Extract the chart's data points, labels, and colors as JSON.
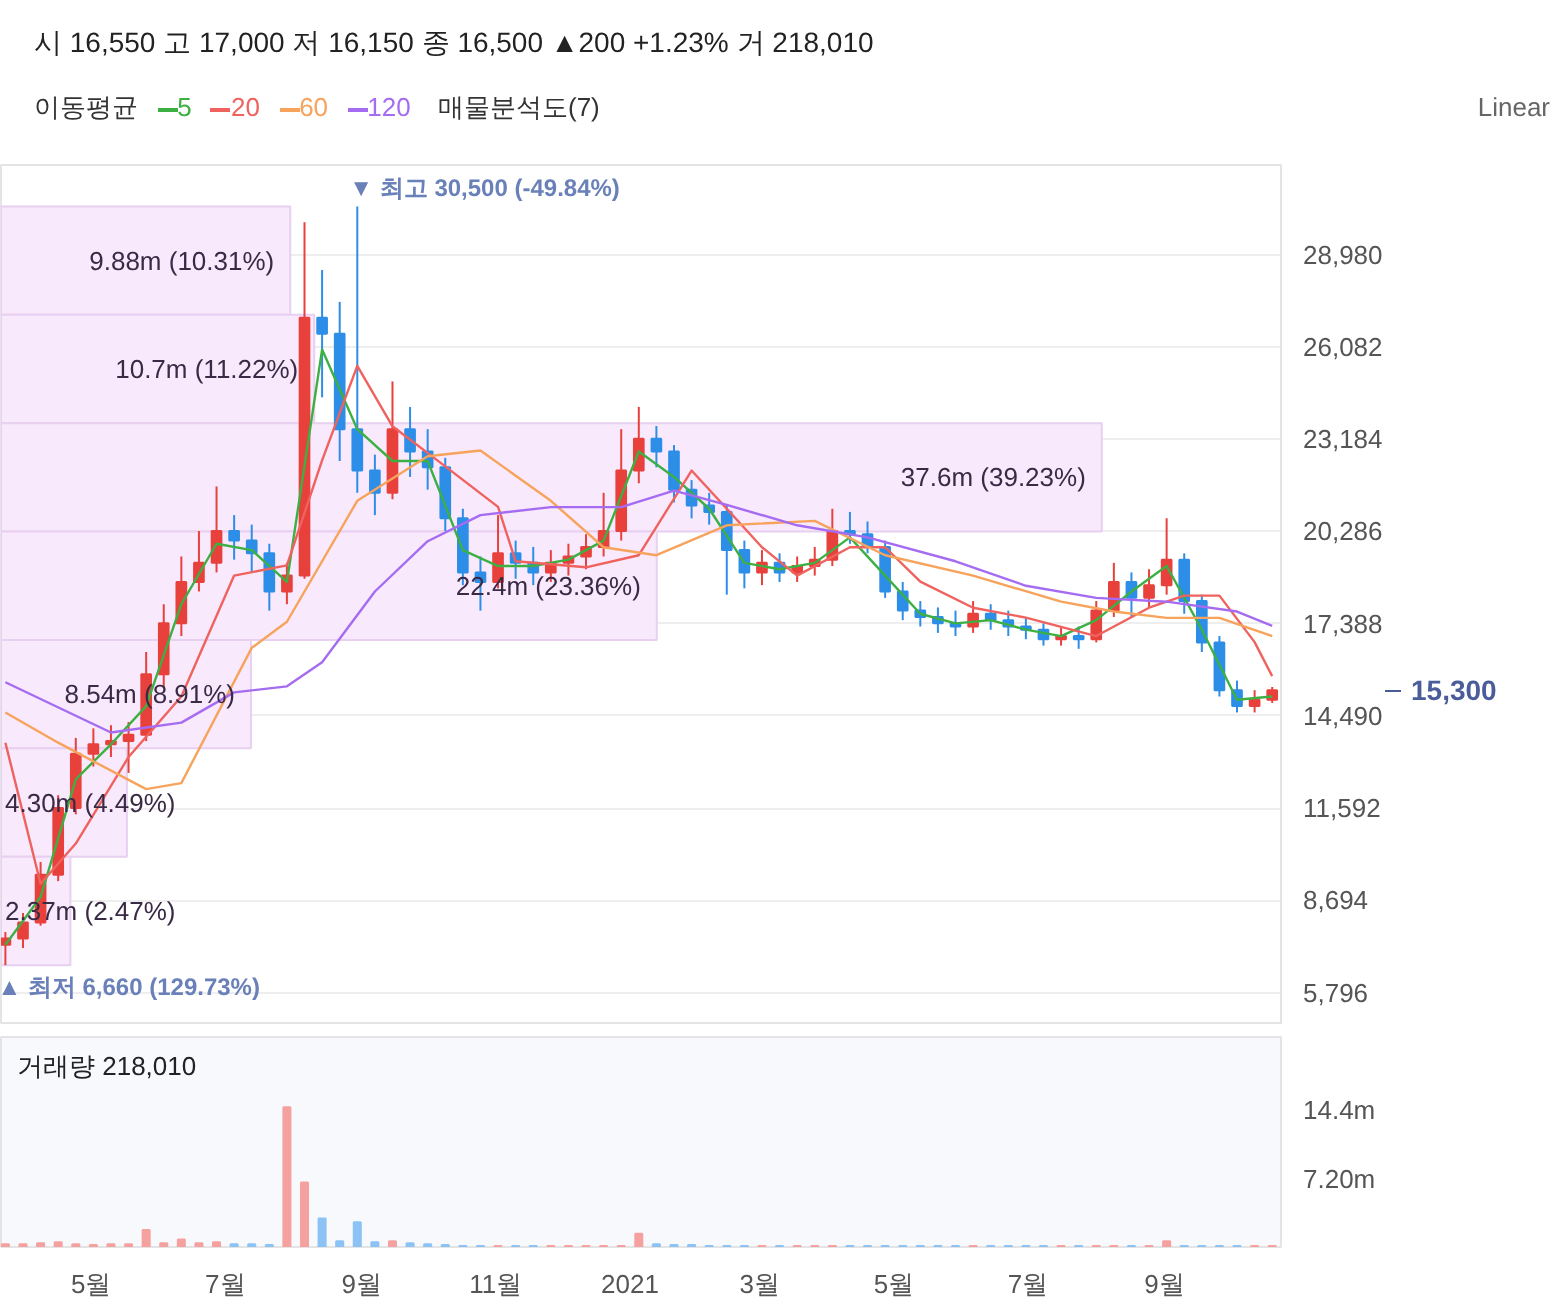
{
  "chart_data": [
    {
      "type": "candlestick",
      "subtitle": "시 16,550 고 17,000 저 16,150 종 16,500 ▲200 +1.23% 거 218,010",
      "legend_title": "이동평균",
      "legend": "top left",
      "grid": "y",
      "tick_labels": "y",
      "x": [
        "2020-03-23",
        "2020-03-31",
        "2020-04-08",
        "2020-04-16",
        "2020-04-24",
        "2020-05-02",
        "2020-05-10",
        "2020-05-18",
        "2020-05-26",
        "2020-06-03",
        "2020-06-11",
        "2020-06-19",
        "2020-06-27",
        "2020-07-05",
        "2020-07-13",
        "2020-07-21",
        "2020-07-29",
        "2020-08-06",
        "2020-08-14",
        "2020-08-22",
        "2020-08-30",
        "2020-09-07",
        "2020-09-15",
        "2020-09-23",
        "2020-10-01",
        "2020-10-09",
        "2020-10-17",
        "2020-10-25",
        "2020-11-02",
        "2020-11-10",
        "2020-11-18",
        "2020-11-26",
        "2020-12-04",
        "2020-12-12",
        "2020-12-20",
        "2020-12-28",
        "2021-01-05",
        "2021-01-13",
        "2021-01-21",
        "2021-01-29",
        "2021-02-06",
        "2021-02-14",
        "2021-02-22",
        "2021-03-02",
        "2021-03-10",
        "2021-03-18",
        "2021-03-26",
        "2021-04-03",
        "2021-04-11",
        "2021-04-19",
        "2021-04-27",
        "2021-05-05",
        "2021-05-13",
        "2021-05-21",
        "2021-05-29",
        "2021-06-06",
        "2021-06-14",
        "2021-06-22",
        "2021-06-30",
        "2021-07-08",
        "2021-07-16",
        "2021-07-24",
        "2021-08-01",
        "2021-08-09",
        "2021-08-17",
        "2021-08-25",
        "2021-09-02",
        "2021-09-10",
        "2021-09-18",
        "2021-09-26",
        "2021-10-04",
        "2021-10-12",
        "2021-10-20"
      ],
      "ohlc": [
        [
          7300,
          7700,
          6660,
          7500
        ],
        [
          7500,
          8300,
          7200,
          8000
        ],
        [
          8000,
          9900,
          7900,
          9500
        ],
        [
          9500,
          12000,
          9300,
          11600
        ],
        [
          11600,
          13800,
          11400,
          13300
        ],
        [
          13300,
          14100,
          12900,
          13600
        ],
        [
          13600,
          14200,
          13200,
          13700
        ],
        [
          13700,
          14300,
          12700,
          13900
        ],
        [
          13900,
          16500,
          13700,
          15800
        ],
        [
          15800,
          18000,
          15400,
          17400
        ],
        [
          17400,
          19500,
          17000,
          18700
        ],
        [
          18700,
          20300,
          18400,
          19300
        ],
        [
          19300,
          21700,
          19000,
          20300
        ],
        [
          20300,
          20800,
          19400,
          20000
        ],
        [
          20000,
          20500,
          19000,
          19600
        ],
        [
          19600,
          19900,
          17800,
          18400
        ],
        [
          18400,
          19300,
          18000,
          18900
        ],
        [
          18900,
          30000,
          18800,
          27000
        ],
        [
          27000,
          28500,
          24500,
          26500
        ],
        [
          26500,
          27500,
          22500,
          23500
        ],
        [
          23500,
          30500,
          21500,
          22200
        ],
        [
          22200,
          22700,
          20800,
          21500
        ],
        [
          21500,
          25000,
          21300,
          23500
        ],
        [
          23500,
          24200,
          22000,
          22800
        ],
        [
          22800,
          23500,
          21600,
          22300
        ],
        [
          22300,
          22600,
          20300,
          20700
        ],
        [
          20700,
          21000,
          18600,
          19000
        ],
        [
          19000,
          19500,
          17800,
          18700
        ],
        [
          18700,
          20800,
          18500,
          19600
        ],
        [
          19600,
          20000,
          18800,
          19300
        ],
        [
          19300,
          19800,
          18600,
          19000
        ],
        [
          19000,
          19700,
          18700,
          19300
        ],
        [
          19300,
          19900,
          18900,
          19500
        ],
        [
          19500,
          20200,
          19100,
          19800
        ],
        [
          19800,
          21500,
          19500,
          20300
        ],
        [
          20300,
          23500,
          20000,
          22200
        ],
        [
          22200,
          24200,
          21800,
          23200
        ],
        [
          23200,
          23600,
          22300,
          22800
        ],
        [
          22800,
          23000,
          21200,
          21600
        ],
        [
          21600,
          21900,
          20700,
          21100
        ],
        [
          21100,
          21500,
          20500,
          20900
        ],
        [
          20900,
          21100,
          18300,
          19700
        ],
        [
          19700,
          20000,
          18500,
          19000
        ],
        [
          19000,
          19700,
          18600,
          19300
        ],
        [
          19300,
          19600,
          18700,
          19000
        ],
        [
          19000,
          19500,
          18700,
          19200
        ],
        [
          19200,
          19800,
          18900,
          19400
        ],
        [
          19400,
          21000,
          19200,
          20300
        ],
        [
          20300,
          20900,
          19900,
          20200
        ],
        [
          20200,
          20600,
          19600,
          19800
        ],
        [
          19800,
          20000,
          18200,
          18400
        ],
        [
          18400,
          18700,
          17500,
          17800
        ],
        [
          17800,
          18100,
          17300,
          17600
        ],
        [
          17600,
          17900,
          17100,
          17400
        ],
        [
          17400,
          17800,
          17000,
          17300
        ],
        [
          17300,
          18100,
          17100,
          17700
        ],
        [
          17700,
          18000,
          17200,
          17500
        ],
        [
          17500,
          17800,
          17000,
          17300
        ],
        [
          17300,
          17600,
          16900,
          17200
        ],
        [
          17200,
          17400,
          16700,
          16900
        ],
        [
          16900,
          17300,
          16700,
          17000
        ],
        [
          17000,
          17300,
          16600,
          16900
        ],
        [
          16900,
          18100,
          16800,
          17800
        ],
        [
          17800,
          19300,
          17600,
          18700
        ],
        [
          18700,
          19000,
          17600,
          18200
        ],
        [
          18200,
          19100,
          17900,
          18600
        ],
        [
          18600,
          20700,
          18300,
          19400
        ],
        [
          19400,
          19600,
          17700,
          18100
        ],
        [
          18100,
          18300,
          16500,
          16800
        ],
        [
          16800,
          17000,
          15100,
          15300
        ],
        [
          15300,
          15600,
          14600,
          14800
        ],
        [
          14800,
          15300,
          14600,
          15000
        ],
        [
          15000,
          15400,
          14900,
          15300
        ]
      ],
      "colors": [
        "#e8413c",
        "#e8413c",
        "#e8413c",
        "#e8413c",
        "#e8413c",
        "#e8413c",
        "#e8413c",
        "#e8413c",
        "#e8413c",
        "#e8413c",
        "#e8413c",
        "#e8413c",
        "#e8413c",
        "#2d8ee8",
        "#2d8ee8",
        "#2d8ee8",
        "#e8413c",
        "#e8413c",
        "#2d8ee8",
        "#2d8ee8",
        "#2d8ee8",
        "#2d8ee8",
        "#e8413c",
        "#2d8ee8",
        "#2d8ee8",
        "#2d8ee8",
        "#2d8ee8",
        "#2d8ee8",
        "#e8413c",
        "#2d8ee8",
        "#2d8ee8",
        "#e8413c",
        "#e8413c",
        "#e8413c",
        "#e8413c",
        "#e8413c",
        "#e8413c",
        "#2d8ee8",
        "#2d8ee8",
        "#2d8ee8",
        "#2d8ee8",
        "#2d8ee8",
        "#2d8ee8",
        "#e8413c",
        "#2d8ee8",
        "#e8413c",
        "#e8413c",
        "#e8413c",
        "#2d8ee8",
        "#2d8ee8",
        "#2d8ee8",
        "#2d8ee8",
        "#2d8ee8",
        "#2d8ee8",
        "#2d8ee8",
        "#e8413c",
        "#2d8ee8",
        "#2d8ee8",
        "#2d8ee8",
        "#2d8ee8",
        "#e8413c",
        "#2d8ee8",
        "#e8413c",
        "#e8413c",
        "#2d8ee8",
        "#e8413c",
        "#e8413c",
        "#2d8ee8",
        "#2d8ee8",
        "#2d8ee8",
        "#2d8ee8",
        "#e8413c",
        "#e8413c"
      ],
      "series": [
        {
          "type": "line",
          "name": "5",
          "color": "#3cb043",
          "x": [
            "2020-03-23",
            "2020-04-08",
            "2020-04-24",
            "2020-05-10",
            "2020-05-26",
            "2020-06-11",
            "2020-06-27",
            "2020-07-13",
            "2020-07-29",
            "2020-08-14",
            "2020-08-30",
            "2020-09-15",
            "2020-10-01",
            "2020-10-17",
            "2020-11-02",
            "2020-11-18",
            "2020-12-04",
            "2020-12-20",
            "2021-01-05",
            "2021-01-21",
            "2021-02-06",
            "2021-02-22",
            "2021-03-10",
            "2021-03-26",
            "2021-04-11",
            "2021-04-27",
            "2021-05-13",
            "2021-05-29",
            "2021-06-14",
            "2021-06-30",
            "2021-07-16",
            "2021-08-01",
            "2021-08-17",
            "2021-09-02",
            "2021-09-18",
            "2021-10-04",
            "2021-10-20"
          ],
          "values": [
            7300,
            8800,
            12500,
            13600,
            14800,
            18000,
            19900,
            19700,
            18700,
            26000,
            23500,
            22500,
            22500,
            19700,
            19200,
            19200,
            19400,
            20000,
            22800,
            22000,
            21000,
            19300,
            19100,
            19300,
            20100,
            18900,
            17700,
            17400,
            17500,
            17200,
            17000,
            17500,
            18400,
            19200,
            17200,
            15000,
            15100
          ]
        },
        {
          "type": "line",
          "name": "20",
          "color": "#f0625e",
          "x": [
            "2020-03-23",
            "2020-04-08",
            "2020-04-24",
            "2020-05-18",
            "2020-06-11",
            "2020-07-05",
            "2020-07-29",
            "2020-08-14",
            "2020-08-30",
            "2020-09-15",
            "2020-10-09",
            "2020-11-02",
            "2020-11-10",
            "2020-12-12",
            "2021-01-05",
            "2021-01-29",
            "2021-02-14",
            "2021-03-02",
            "2021-03-18",
            "2021-04-11",
            "2021-04-27",
            "2021-05-13",
            "2021-06-06",
            "2021-06-30",
            "2021-08-01",
            "2021-08-25",
            "2021-09-10",
            "2021-09-26",
            "2021-10-12",
            "2021-10-20"
          ],
          "values": [
            13650,
            9220,
            10480,
            13200,
            15100,
            18900,
            19220,
            22520,
            25490,
            23590,
            22330,
            21060,
            19350,
            19160,
            19540,
            22200,
            21000,
            19790,
            18900,
            19790,
            19790,
            18710,
            17890,
            17580,
            17000,
            17890,
            18270,
            18270,
            16810,
            15740
          ]
        },
        {
          "type": "line",
          "name": "60",
          "color": "#f7a35c",
          "x": [
            "2020-03-23",
            "2020-04-16",
            "2020-05-26",
            "2020-06-11",
            "2020-07-13",
            "2020-07-29",
            "2020-08-30",
            "2020-10-01",
            "2020-10-25",
            "2020-11-26",
            "2020-12-20",
            "2021-01-13",
            "2021-02-14",
            "2021-03-26",
            "2021-04-27",
            "2021-06-06",
            "2021-07-16",
            "2021-08-09",
            "2021-09-02",
            "2021-09-26",
            "2021-10-20"
          ],
          "values": [
            14600,
            13650,
            12190,
            12380,
            16630,
            17450,
            21250,
            22650,
            22830,
            21250,
            19790,
            19540,
            20480,
            20620,
            19540,
            18900,
            18080,
            17770,
            17570,
            17570,
            17000
          ]
        },
        {
          "type": "line",
          "name": "120",
          "color": "#a56cf2",
          "x": [
            "2020-03-23",
            "2020-05-10",
            "2020-06-11",
            "2020-07-05",
            "2020-07-29",
            "2020-08-14",
            "2020-09-07",
            "2020-10-01",
            "2020-10-25",
            "2020-11-26",
            "2020-12-28",
            "2021-01-21",
            "2021-02-14",
            "2021-03-18",
            "2021-04-19",
            "2021-05-29",
            "2021-06-30",
            "2021-08-01",
            "2021-09-02",
            "2021-10-04",
            "2021-10-20"
          ],
          "values": [
            15550,
            13970,
            14280,
            15230,
            15420,
            16180,
            18400,
            19980,
            20800,
            21050,
            21050,
            21570,
            21120,
            20480,
            20100,
            19350,
            18580,
            18200,
            18080,
            17770,
            17320
          ]
        }
      ],
      "xlim": [
        "2020-03-21",
        "2021-10-24"
      ],
      "ylim": [
        4780,
        31800
      ],
      "yticks": [
        {
          "value": 5796,
          "label": "5,796"
        },
        {
          "value": 8694,
          "label": "8,694"
        },
        {
          "value": 11592,
          "label": "11,592"
        },
        {
          "value": 14490,
          "label": "14,490"
        },
        {
          "value": 17388,
          "label": "17,388"
        },
        {
          "value": 20286,
          "label": "20,286"
        },
        {
          "value": 23184,
          "label": "23,184"
        },
        {
          "value": 26082,
          "label": "26,082"
        },
        {
          "value": 28980,
          "label": "28,980"
        }
      ],
      "annotations": [
        "Linear",
        {
          "text": "▼ 최고 30,500 (-49.84%)",
          "x": "2020-08-30",
          "y": 30500
        },
        {
          "text": "▲ 최저 6,660 (129.73%)",
          "x": "2020-03-23",
          "y": 6660
        },
        "15,300"
      ]
    },
    {
      "type": "bar",
      "orientation": "horizontal",
      "title": "매물분석도(7)",
      "color": "#f8e9fc",
      "categories": [
        null,
        null,
        null,
        null,
        null,
        null,
        null
      ],
      "values": [
        9880000,
        10700000,
        37600000,
        22400000,
        8540000,
        4300000,
        2370000
      ],
      "value_labels": [
        "9.88m (10.31%)",
        "10.7m (11.22%)",
        "37.6m (39.23%)",
        "22.4m (23.36%)",
        "8.54m (8.91%)",
        "4.30m (4.49%)",
        "2.37m (2.47%)"
      ]
    },
    {
      "type": "bar",
      "annotations": [
        "거래량 218,010"
      ],
      "grid": false,
      "x": [
        "2020-03-23",
        "2020-03-31",
        "2020-04-08",
        "2020-04-16",
        "2020-04-24",
        "2020-05-02",
        "2020-05-10",
        "2020-05-18",
        "2020-05-26",
        "2020-06-03",
        "2020-06-11",
        "2020-06-19",
        "2020-06-27",
        "2020-07-05",
        "2020-07-13",
        "2020-07-21",
        "2020-07-29",
        "2020-08-06",
        "2020-08-14",
        "2020-08-22",
        "2020-08-30",
        "2020-09-07",
        "2020-09-15",
        "2020-09-23",
        "2020-10-01",
        "2020-10-09",
        "2020-10-17",
        "2020-10-25",
        "2020-11-02",
        "2020-11-10",
        "2020-11-18",
        "2020-11-26",
        "2020-12-04",
        "2020-12-12",
        "2020-12-20",
        "2020-12-28",
        "2021-01-05",
        "2021-01-13",
        "2021-01-21",
        "2021-01-29",
        "2021-02-06",
        "2021-02-14",
        "2021-02-22",
        "2021-03-02",
        "2021-03-10",
        "2021-03-18",
        "2021-03-26",
        "2021-04-03",
        "2021-04-11",
        "2021-04-19",
        "2021-04-27",
        "2021-05-05",
        "2021-05-13",
        "2021-05-21",
        "2021-05-29",
        "2021-06-06",
        "2021-06-14",
        "2021-06-22",
        "2021-06-30",
        "2021-07-08",
        "2021-07-16",
        "2021-07-24",
        "2021-08-01",
        "2021-08-09",
        "2021-08-17",
        "2021-08-25",
        "2021-09-02",
        "2021-09-10",
        "2021-09-18",
        "2021-09-26",
        "2021-10-04",
        "2021-10-12",
        "2021-10-20"
      ],
      "values": [
        0.3,
        0.3,
        0.4,
        0.5,
        0.3,
        0.2,
        0.3,
        0.3,
        1.8,
        0.4,
        0.8,
        0.4,
        0.5,
        0.3,
        0.3,
        0.2,
        14.7,
        6.8,
        3.0,
        0.6,
        2.6,
        0.5,
        0.6,
        0.4,
        0.3,
        0.2,
        0.1,
        0.1,
        0.1,
        0.1,
        0.1,
        0.1,
        0.1,
        0.1,
        0.1,
        0.1,
        1.4,
        0.3,
        0.2,
        0.2,
        0.1,
        0.1,
        0.1,
        0.1,
        0.1,
        0.1,
        0.1,
        0.1,
        0.1,
        0.1,
        0.1,
        0.1,
        0.1,
        0.1,
        0.1,
        0.1,
        0.1,
        0.1,
        0.1,
        0.1,
        0.1,
        0.1,
        0.1,
        0.1,
        0.1,
        0.1,
        0.6,
        0.1,
        0.1,
        0.1,
        0.1,
        0.1,
        0.1
      ],
      "colors": [
        "#f4a1a0",
        "#f4a1a0",
        "#f4a1a0",
        "#f4a1a0",
        "#f4a1a0",
        "#f4a1a0",
        "#f4a1a0",
        "#f4a1a0",
        "#f4a1a0",
        "#f4a1a0",
        "#f4a1a0",
        "#f4a1a0",
        "#f4a1a0",
        "#8cc2f4",
        "#8cc2f4",
        "#8cc2f4",
        "#f4a1a0",
        "#f4a1a0",
        "#8cc2f4",
        "#8cc2f4",
        "#8cc2f4",
        "#8cc2f4",
        "#f4a1a0",
        "#8cc2f4",
        "#8cc2f4",
        "#8cc2f4",
        "#8cc2f4",
        "#8cc2f4",
        "#f4a1a0",
        "#8cc2f4",
        "#8cc2f4",
        "#f4a1a0",
        "#f4a1a0",
        "#f4a1a0",
        "#f4a1a0",
        "#f4a1a0",
        "#f4a1a0",
        "#8cc2f4",
        "#8cc2f4",
        "#8cc2f4",
        "#8cc2f4",
        "#8cc2f4",
        "#8cc2f4",
        "#f4a1a0",
        "#8cc2f4",
        "#f4a1a0",
        "#f4a1a0",
        "#f4a1a0",
        "#8cc2f4",
        "#8cc2f4",
        "#8cc2f4",
        "#8cc2f4",
        "#8cc2f4",
        "#8cc2f4",
        "#8cc2f4",
        "#f4a1a0",
        "#8cc2f4",
        "#8cc2f4",
        "#8cc2f4",
        "#8cc2f4",
        "#f4a1a0",
        "#8cc2f4",
        "#f4a1a0",
        "#f4a1a0",
        "#8cc2f4",
        "#f4a1a0",
        "#f4a1a0",
        "#8cc2f4",
        "#8cc2f4",
        "#8cc2f4",
        "#8cc2f4",
        "#f4a1a0",
        "#f4a1a0"
      ],
      "xlim": [
        "2020-03-21",
        "2021-10-24"
      ],
      "xticks": [
        {
          "value": "2020-05-01",
          "label": "5월"
        },
        {
          "value": "2020-07-01",
          "label": "7월"
        },
        {
          "value": "2020-09-01",
          "label": "9월"
        },
        {
          "value": "2020-11-01",
          "label": "11월"
        },
        {
          "value": "2021-01-01",
          "label": "2021"
        },
        {
          "value": "2021-03-01",
          "label": "3월"
        },
        {
          "value": "2021-05-01",
          "label": "5월"
        },
        {
          "value": "2021-07-01",
          "label": "7월"
        },
        {
          "value": "2021-09-01",
          "label": "9월"
        }
      ],
      "ylim": [
        0,
        22.1
      ],
      "yticks": [
        {
          "value": 7.2,
          "label": "7.20m"
        },
        {
          "value": 14.4,
          "label": "14.4m"
        }
      ]
    }
  ]
}
